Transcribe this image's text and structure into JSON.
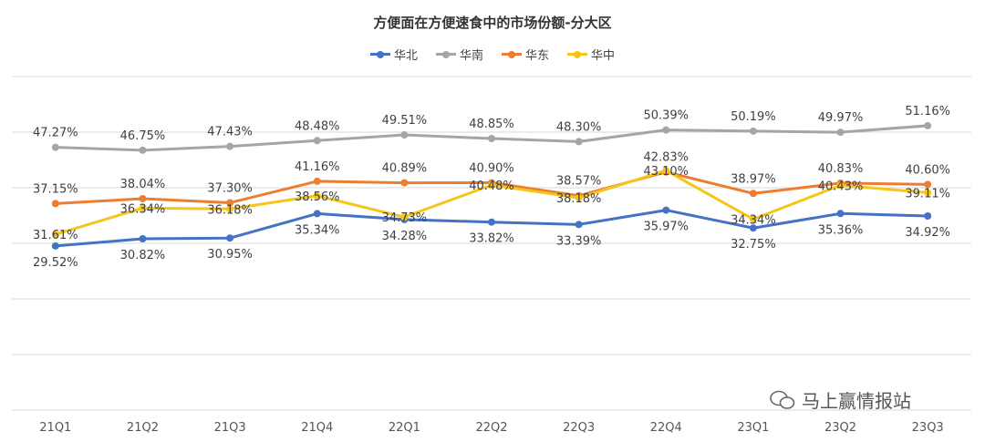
{
  "chart_data": {
    "type": "line",
    "title": "方便面在方便速食中的市场份额-分大区",
    "categories": [
      "21Q1",
      "21Q2",
      "21Q3",
      "21Q4",
      "22Q1",
      "22Q2",
      "22Q3",
      "22Q4",
      "23Q1",
      "23Q2",
      "23Q3"
    ],
    "series": [
      {
        "name": "华北",
        "color": "#4472c4",
        "label_pos": "below",
        "values": [
          29.52,
          30.82,
          30.95,
          35.34,
          34.28,
          33.82,
          33.39,
          35.97,
          32.75,
          35.36,
          34.92
        ]
      },
      {
        "name": "华南",
        "color": "#a5a5a5",
        "label_pos": "above",
        "values": [
          47.27,
          46.75,
          47.43,
          48.48,
          49.51,
          48.85,
          48.3,
          50.39,
          50.19,
          49.97,
          51.16
        ]
      },
      {
        "name": "华东",
        "color": "#ed7d31",
        "label_pos": "above",
        "values": [
          37.15,
          38.04,
          37.3,
          41.16,
          40.89,
          40.9,
          38.57,
          42.83,
          38.97,
          40.83,
          40.6
        ]
      },
      {
        "name": "华中",
        "color": "#f5c518",
        "label_pos": "center",
        "values": [
          31.61,
          36.34,
          36.18,
          38.56,
          34.73,
          40.48,
          38.18,
          43.1,
          34.34,
          40.43,
          39.11
        ]
      }
    ],
    "value_suffix": "%",
    "ylim": [
      0,
      60
    ],
    "ytick_step": 10,
    "grid": true,
    "legend_position": "top-center",
    "xlabel": "",
    "ylabel": ""
  },
  "watermark": "马上赢情报站"
}
